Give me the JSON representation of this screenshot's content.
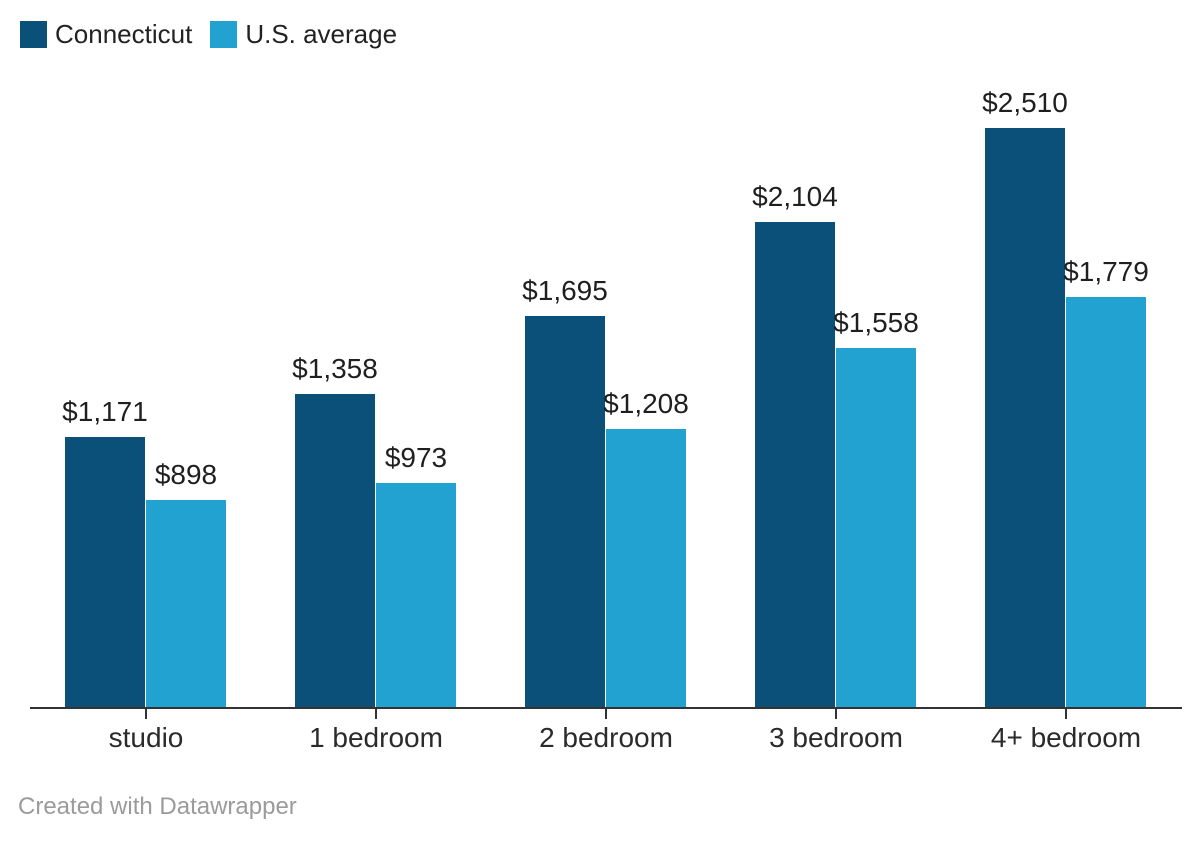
{
  "chart_data": {
    "type": "bar",
    "title": "",
    "categories": [
      "studio",
      "1 bedroom",
      "2 bedroom",
      "3 bedroom",
      "4+ bedroom"
    ],
    "series": [
      {
        "name": "Connecticut",
        "color": "#0a5078",
        "values": [
          1171,
          1358,
          1695,
          2104,
          2510
        ],
        "labels": [
          "$1,171",
          "$1,358",
          "$1,695",
          "$2,104",
          "$2,510"
        ]
      },
      {
        "name": "U.S. average",
        "color": "#22a2d0",
        "values": [
          898,
          973,
          1208,
          1558,
          1779
        ],
        "labels": [
          "$898",
          "$973",
          "$1,208",
          "$1,558",
          "$1,779"
        ]
      }
    ],
    "ylim": [
      0,
      2510
    ],
    "grid": false,
    "legend_position": "top-left",
    "value_prefix": "$",
    "data_labels_shown": true
  },
  "legend": {
    "items": [
      {
        "label": "Connecticut",
        "color": "#0a5078"
      },
      {
        "label": "U.S. average",
        "color": "#22a2d0"
      }
    ]
  },
  "footer": {
    "credit": "Created with Datawrapper"
  },
  "colors": {
    "connecticut": "#0a5078",
    "us_average": "#22a2d0",
    "axis": "#333333",
    "value_label": "#1f1f1f",
    "axis_label": "#2b2b2b",
    "footer": "#9b9b9b",
    "background": "#ffffff"
  }
}
